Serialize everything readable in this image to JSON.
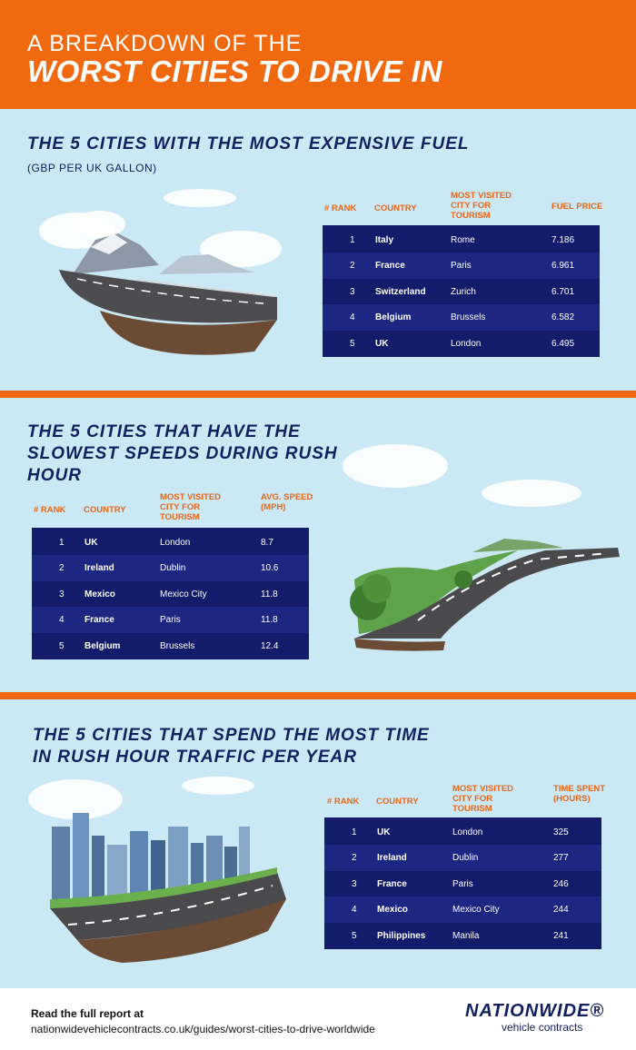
{
  "header": {
    "line1": "A BREAKDOWN OF THE",
    "line2": "WORST CITIES TO DRIVE IN"
  },
  "sections": [
    {
      "title": "THE 5 CITIES WITH THE MOST EXPENSIVE FUEL",
      "subtitle": "(GBP PER UK GALLON)",
      "headers": [
        "# RANK",
        "COUNTRY",
        "MOST VISITED CITY FOR TOURISM",
        "FUEL PRICE"
      ],
      "rows": [
        [
          "1",
          "Italy",
          "Rome",
          "7.186"
        ],
        [
          "2",
          "France",
          "Paris",
          "6.961"
        ],
        [
          "3",
          "Switzerland",
          "Zurich",
          "6.701"
        ],
        [
          "4",
          "Belgium",
          "Brussels",
          "6.582"
        ],
        [
          "5",
          "UK",
          "London",
          "6.495"
        ]
      ]
    },
    {
      "title": "THE 5 CITIES THAT HAVE THE SLOWEST SPEEDS DURING RUSH HOUR",
      "headers": [
        "# RANK",
        "COUNTRY",
        "MOST VISITED CITY FOR TOURISM",
        "AVG. SPEED (MPH)"
      ],
      "rows": [
        [
          "1",
          "UK",
          "London",
          "8.7"
        ],
        [
          "2",
          "Ireland",
          "Dublin",
          "10.6"
        ],
        [
          "3",
          "Mexico",
          "Mexico City",
          "11.8"
        ],
        [
          "4",
          "France",
          "Paris",
          "11.8"
        ],
        [
          "5",
          "Belgium",
          "Brussels",
          "12.4"
        ]
      ]
    },
    {
      "title": "THE 5 CITIES THAT SPEND THE MOST TIME IN RUSH HOUR TRAFFIC PER YEAR",
      "headers": [
        "# RANK",
        "COUNTRY",
        "MOST VISITED CITY FOR TOURISM",
        "TIME SPENT (HOURS)"
      ],
      "rows": [
        [
          "1",
          "UK",
          "London",
          "325"
        ],
        [
          "2",
          "Ireland",
          "Dublin",
          "277"
        ],
        [
          "3",
          "France",
          "Paris",
          "246"
        ],
        [
          "4",
          "Mexico",
          "Mexico City",
          "244"
        ],
        [
          "5",
          "Philippines",
          "Manila",
          "241"
        ]
      ]
    }
  ],
  "footer": {
    "line1": "Read the full report at",
    "line2": "nationwidevehiclecontracts.co.uk/guides/worst-cities-to-drive-worldwide",
    "logo_main": "NATIONWIDE®",
    "logo_sub": "vehicle contracts"
  },
  "colors": {
    "orange": "#f0690f",
    "navy": "#141b6a",
    "sky": "#cbe9f4",
    "title": "#132060"
  }
}
